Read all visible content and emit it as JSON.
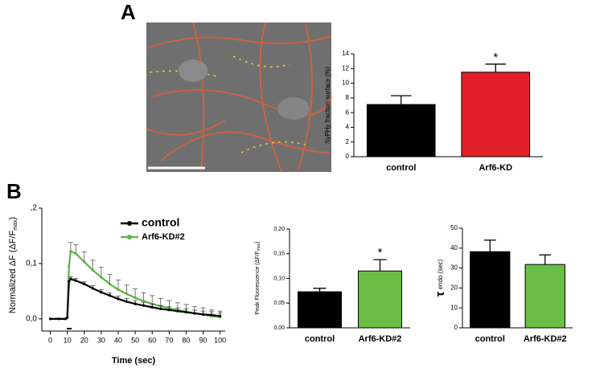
{
  "panels": [
    "A",
    "B"
  ],
  "chart_data": [
    {
      "type": "bar",
      "y_label": "SyPHy fraction surface (%)",
      "categories": [
        "control",
        "Arf6-KD"
      ],
      "values": [
        7.1,
        11.5
      ],
      "errors": [
        1.2,
        1.1
      ],
      "colors": [
        "#000000",
        "#e3202a"
      ],
      "ylim": [
        0,
        14
      ],
      "yticks": [
        0,
        2,
        4,
        6,
        8,
        10,
        12,
        14
      ],
      "annotation": "*"
    },
    {
      "type": "line",
      "x_label": "Time (sec)",
      "y_label": [
        "Normalized ΔF (ΔF/F",
        "max",
        ")"
      ],
      "x": [
        0,
        5,
        9,
        10,
        11,
        12,
        15,
        20,
        25,
        30,
        35,
        40,
        45,
        50,
        55,
        60,
        65,
        70,
        75,
        80,
        85,
        90,
        95,
        100
      ],
      "series": [
        {
          "name": "control",
          "color": "#000000",
          "values": [
            0,
            0,
            0,
            0.002,
            0.068,
            0.072,
            0.069,
            0.063,
            0.055,
            0.048,
            0.042,
            0.036,
            0.031,
            0.027,
            0.024,
            0.021,
            0.018,
            0.016,
            0.014,
            0.012,
            0.01,
            0.008,
            0.007,
            0.005
          ],
          "errors": [
            null,
            null,
            null,
            null,
            null,
            0.004,
            0.004,
            0.004,
            0.005,
            0.005,
            0.005,
            0.005,
            0.006,
            0.006,
            0.006,
            0.006,
            0.006,
            0.006,
            0.006,
            0.006,
            0.006,
            0.006,
            0.006,
            0.006
          ]
        },
        {
          "name": "Arf6-KD#2",
          "color": "#5fb246",
          "values": [
            0,
            0,
            0,
            0.003,
            0.095,
            0.122,
            0.118,
            0.103,
            0.088,
            0.075,
            0.063,
            0.053,
            0.045,
            0.038,
            0.032,
            0.027,
            0.023,
            0.019,
            0.016,
            0.013,
            0.01,
            0.008,
            0.005,
            0.003
          ],
          "errors": [
            null,
            null,
            null,
            null,
            null,
            0.016,
            0.016,
            0.018,
            0.018,
            0.018,
            0.017,
            0.017,
            0.016,
            0.016,
            0.015,
            0.015,
            0.014,
            0.014,
            0.013,
            0.013,
            0.012,
            0.012,
            0.011,
            0.011
          ]
        }
      ],
      "xlim": [
        -5,
        103
      ],
      "xticks": [
        0,
        10,
        20,
        30,
        40,
        50,
        60,
        70,
        80,
        90,
        100
      ],
      "ylim": [
        -0.022,
        0.2
      ],
      "yticks": [
        {
          "value": 0,
          "label": "0,0"
        },
        {
          "value": 0.1,
          "label": "0,1"
        },
        {
          "value": 0.2,
          "label": ",2"
        }
      ]
    },
    {
      "type": "bar",
      "y_label": [
        "Peak Fluorescence (ΔF/F",
        "max",
        ")"
      ],
      "categories": [
        "control",
        "Arf6-KD#2"
      ],
      "values": [
        0.073,
        0.115
      ],
      "errors": [
        0.007,
        0.023
      ],
      "colors": [
        "#000000",
        "#6cbd45"
      ],
      "ylim": [
        0,
        0.2
      ],
      "yticks": [
        {
          "value": 0,
          "label": "0,00"
        },
        {
          "value": 0.05,
          "label": "0,05"
        },
        {
          "value": 0.1,
          "label": "0,10"
        },
        {
          "value": 0.15,
          "label": "0,15"
        },
        {
          "value": 0.2,
          "label": "0,20"
        }
      ],
      "annotation": "*"
    },
    {
      "type": "bar",
      "y_label": [
        "τ",
        " endo (sec)"
      ],
      "categories": [
        "control",
        "Arf6-KD#2"
      ],
      "values": [
        38.2,
        31.8
      ],
      "errors": [
        5.8,
        4.8
      ],
      "colors": [
        "#000000",
        "#6cbd45"
      ],
      "ylim": [
        0,
        50
      ],
      "yticks": [
        0,
        10,
        20,
        30,
        40,
        50
      ]
    }
  ]
}
